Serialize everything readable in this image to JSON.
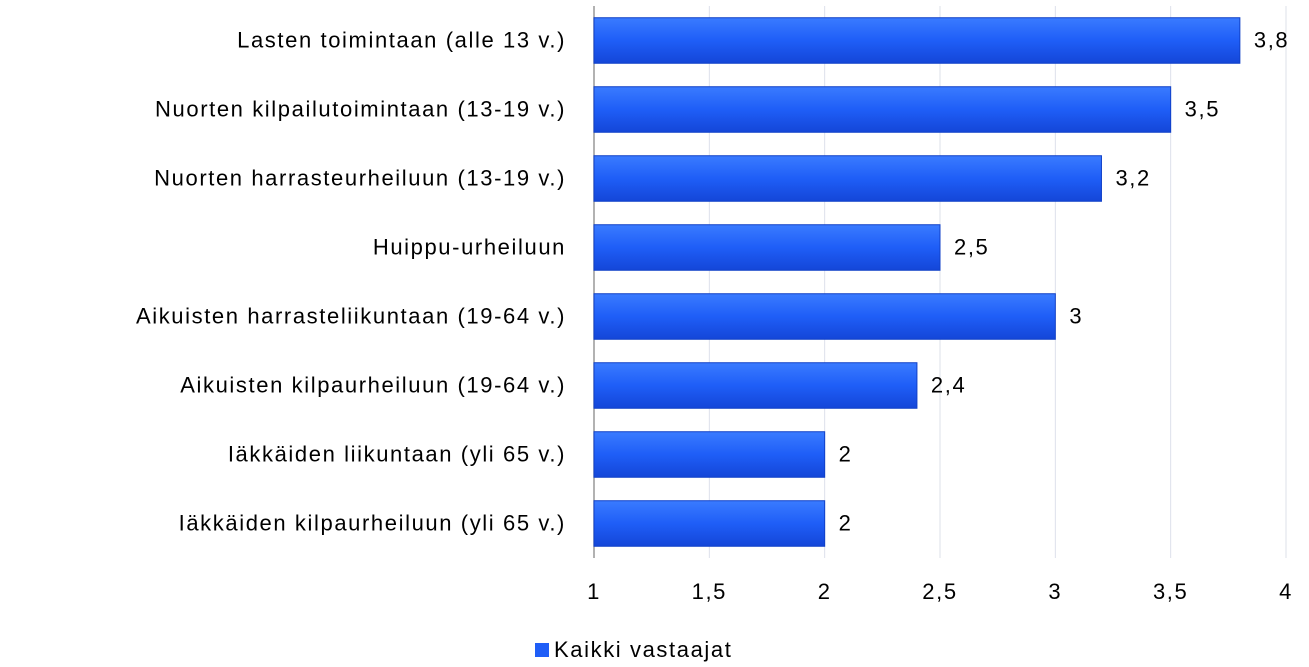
{
  "chart_data": {
    "type": "bar",
    "orientation": "horizontal",
    "categories": [
      "Lasten toimintaan (alle 13 v.)",
      "Nuorten kilpailutoimintaan (13-19 v.)",
      "Nuorten harrasteurheiluun (13-19 v.)",
      "Huippu-urheiluun",
      "Aikuisten harrasteliikuntaan (19-64 v.)",
      "Aikuisten kilpaurheiluun (19-64 v.)",
      "Iäkkäiden liikuntaan (yli 65 v.)",
      "Iäkkäiden kilpaurheiluun (yli 65 v.)"
    ],
    "series": [
      {
        "name": "Kaikki vastaajat",
        "color": "#1f5ef7",
        "values": [
          3.8,
          3.5,
          3.2,
          2.5,
          3,
          2.4,
          2,
          2
        ],
        "value_labels": [
          "3,8",
          "3,5",
          "3,2",
          "2,5",
          "3",
          "2,4",
          "2",
          "2"
        ]
      }
    ],
    "xlim": [
      1,
      4
    ],
    "xticks": [
      1,
      {
        "value": 1.5,
        "label": "1,5"
      },
      2,
      {
        "value": 2.5,
        "label": "2,5"
      },
      3,
      {
        "value": 3.5,
        "label": "3,5"
      },
      4
    ],
    "grid": true,
    "legend": "bottom"
  }
}
